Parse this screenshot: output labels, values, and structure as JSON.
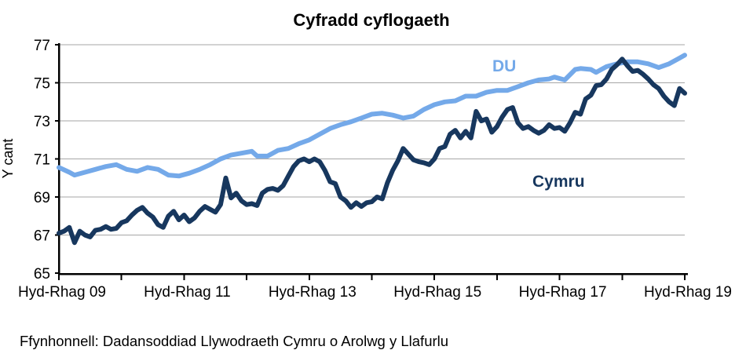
{
  "title": "Cyfradd cyflogaeth",
  "source_note": "Ffynhonnell: Dadansoddiad Llywodraeth Cymru o Arolwg y Llafurlu",
  "labels": {
    "du": "DU",
    "cymru": "Cymru"
  },
  "colors": {
    "du_line": "#74A9E9",
    "cymru_line": "#17375E",
    "gridline": "#A6A6A6",
    "axis": "#000000",
    "background": "#FFFFFF"
  },
  "chart_data": {
    "type": "line",
    "title": "Cyfradd cyflogaeth",
    "xlabel": "",
    "ylabel": "Y cant",
    "ylim": [
      65,
      77
    ],
    "yticks": [
      65,
      67,
      69,
      71,
      73,
      75,
      77
    ],
    "x_unit": "months since Hyd-Rhag 2009 (rolling quarterly labour force data)",
    "x_range_months": [
      0,
      120
    ],
    "xtick_months": [
      0,
      12,
      24,
      36,
      48,
      60,
      72,
      84,
      96,
      108,
      120
    ],
    "xtick_labels": [
      "Hyd-Rhag 09",
      "Hyd-Rhag 11",
      "Hyd-Rhag 13",
      "Hyd-Rhag 15",
      "Hyd-Rhag 17",
      "Hyd-Rhag 19"
    ],
    "grid": "horizontal",
    "legend_position": "inline-labels",
    "series": [
      {
        "name": "DU",
        "color": "#74A9E9",
        "points": [
          [
            0,
            70.55
          ],
          [
            2,
            70.3
          ],
          [
            3,
            70.15
          ],
          [
            5,
            70.3
          ],
          [
            7,
            70.45
          ],
          [
            9,
            70.6
          ],
          [
            11,
            70.7
          ],
          [
            13,
            70.45
          ],
          [
            15,
            70.35
          ],
          [
            17,
            70.55
          ],
          [
            19,
            70.45
          ],
          [
            21,
            70.15
          ],
          [
            23,
            70.1
          ],
          [
            25,
            70.25
          ],
          [
            27,
            70.45
          ],
          [
            29,
            70.7
          ],
          [
            31,
            71.0
          ],
          [
            33,
            71.2
          ],
          [
            35,
            71.3
          ],
          [
            37,
            71.4
          ],
          [
            38,
            71.15
          ],
          [
            40,
            71.15
          ],
          [
            42,
            71.45
          ],
          [
            44,
            71.55
          ],
          [
            46,
            71.8
          ],
          [
            48,
            72.0
          ],
          [
            50,
            72.3
          ],
          [
            52,
            72.6
          ],
          [
            54,
            72.8
          ],
          [
            56,
            72.95
          ],
          [
            58,
            73.15
          ],
          [
            60,
            73.35
          ],
          [
            62,
            73.4
          ],
          [
            64,
            73.3
          ],
          [
            66,
            73.15
          ],
          [
            68,
            73.25
          ],
          [
            70,
            73.6
          ],
          [
            72,
            73.85
          ],
          [
            74,
            74.0
          ],
          [
            76,
            74.05
          ],
          [
            78,
            74.3
          ],
          [
            80,
            74.3
          ],
          [
            82,
            74.5
          ],
          [
            84,
            74.6
          ],
          [
            86,
            74.6
          ],
          [
            88,
            74.8
          ],
          [
            90,
            75.0
          ],
          [
            92,
            75.15
          ],
          [
            94,
            75.2
          ],
          [
            95,
            75.3
          ],
          [
            97,
            75.15
          ],
          [
            99,
            75.7
          ],
          [
            100,
            75.75
          ],
          [
            102,
            75.7
          ],
          [
            103,
            75.55
          ],
          [
            105,
            75.85
          ],
          [
            107,
            76.0
          ],
          [
            109,
            76.1
          ],
          [
            111,
            76.1
          ],
          [
            113,
            76.0
          ],
          [
            115,
            75.8
          ],
          [
            117,
            76.0
          ],
          [
            119,
            76.3
          ],
          [
            120,
            76.45
          ]
        ]
      },
      {
        "name": "Cymru",
        "color": "#17375E",
        "points": [
          [
            0,
            67.1
          ],
          [
            1,
            67.2
          ],
          [
            2,
            67.4
          ],
          [
            3,
            66.6
          ],
          [
            4,
            67.2
          ],
          [
            5,
            67.0
          ],
          [
            6,
            66.9
          ],
          [
            7,
            67.25
          ],
          [
            8,
            67.3
          ],
          [
            9,
            67.45
          ],
          [
            10,
            67.3
          ],
          [
            11,
            67.35
          ],
          [
            12,
            67.65
          ],
          [
            13,
            67.75
          ],
          [
            14,
            68.05
          ],
          [
            15,
            68.3
          ],
          [
            16,
            68.45
          ],
          [
            17,
            68.15
          ],
          [
            18,
            67.95
          ],
          [
            19,
            67.55
          ],
          [
            20,
            67.4
          ],
          [
            21,
            68.0
          ],
          [
            22,
            68.25
          ],
          [
            23,
            67.8
          ],
          [
            24,
            68.05
          ],
          [
            25,
            67.7
          ],
          [
            26,
            67.9
          ],
          [
            27,
            68.25
          ],
          [
            28,
            68.5
          ],
          [
            29,
            68.35
          ],
          [
            30,
            68.2
          ],
          [
            31,
            68.6
          ],
          [
            32,
            70.0
          ],
          [
            33,
            68.95
          ],
          [
            34,
            69.2
          ],
          [
            35,
            68.8
          ],
          [
            36,
            68.6
          ],
          [
            37,
            68.65
          ],
          [
            38,
            68.55
          ],
          [
            39,
            69.2
          ],
          [
            40,
            69.4
          ],
          [
            41,
            69.45
          ],
          [
            42,
            69.35
          ],
          [
            43,
            69.6
          ],
          [
            44,
            70.1
          ],
          [
            45,
            70.6
          ],
          [
            46,
            70.9
          ],
          [
            47,
            71.0
          ],
          [
            48,
            70.85
          ],
          [
            49,
            71.0
          ],
          [
            50,
            70.85
          ],
          [
            51,
            70.4
          ],
          [
            52,
            69.8
          ],
          [
            53,
            69.7
          ],
          [
            54,
            69.0
          ],
          [
            55,
            68.8
          ],
          [
            56,
            68.45
          ],
          [
            57,
            68.7
          ],
          [
            58,
            68.5
          ],
          [
            59,
            68.7
          ],
          [
            60,
            68.75
          ],
          [
            61,
            69.0
          ],
          [
            62,
            68.9
          ],
          [
            63,
            69.75
          ],
          [
            64,
            70.4
          ],
          [
            65,
            70.9
          ],
          [
            66,
            71.55
          ],
          [
            67,
            71.25
          ],
          [
            68,
            70.95
          ],
          [
            69,
            70.85
          ],
          [
            70,
            70.8
          ],
          [
            71,
            70.7
          ],
          [
            72,
            71.0
          ],
          [
            73,
            71.55
          ],
          [
            74,
            71.65
          ],
          [
            75,
            72.3
          ],
          [
            76,
            72.5
          ],
          [
            77,
            72.1
          ],
          [
            78,
            72.45
          ],
          [
            79,
            72.1
          ],
          [
            80,
            73.5
          ],
          [
            81,
            73.0
          ],
          [
            82,
            73.1
          ],
          [
            83,
            72.4
          ],
          [
            84,
            72.7
          ],
          [
            85,
            73.2
          ],
          [
            86,
            73.6
          ],
          [
            87,
            73.7
          ],
          [
            88,
            72.9
          ],
          [
            89,
            72.6
          ],
          [
            90,
            72.7
          ],
          [
            91,
            72.5
          ],
          [
            92,
            72.35
          ],
          [
            93,
            72.5
          ],
          [
            94,
            72.8
          ],
          [
            95,
            72.6
          ],
          [
            96,
            72.65
          ],
          [
            97,
            72.45
          ],
          [
            98,
            72.9
          ],
          [
            99,
            73.45
          ],
          [
            100,
            73.35
          ],
          [
            101,
            74.15
          ],
          [
            102,
            74.35
          ],
          [
            103,
            74.85
          ],
          [
            104,
            74.9
          ],
          [
            105,
            75.2
          ],
          [
            106,
            75.7
          ],
          [
            107,
            75.95
          ],
          [
            108,
            76.25
          ],
          [
            109,
            75.9
          ],
          [
            110,
            75.6
          ],
          [
            111,
            75.65
          ],
          [
            112,
            75.45
          ],
          [
            113,
            75.2
          ],
          [
            114,
            74.9
          ],
          [
            115,
            74.7
          ],
          [
            116,
            74.3
          ],
          [
            117,
            74.0
          ],
          [
            118,
            73.8
          ],
          [
            119,
            74.7
          ],
          [
            120,
            74.45
          ]
        ]
      }
    ]
  }
}
